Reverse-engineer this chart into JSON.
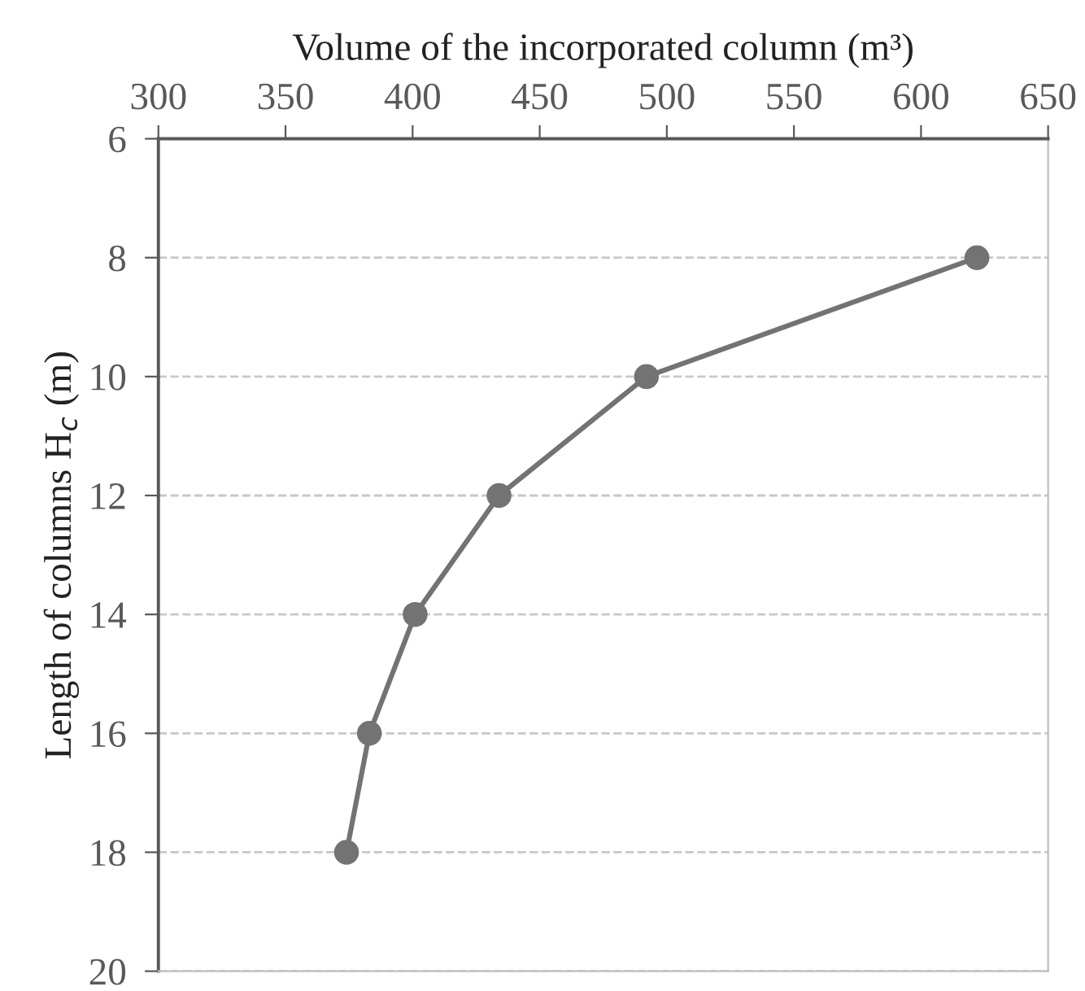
{
  "chart_data": {
    "type": "line",
    "xlabel": "Volume of the incorporated column (m³)",
    "ylabel": "Length of columns H$_{c}$ (m)",
    "series": [
      {
        "color": "#737373",
        "x": [
          622,
          492,
          434,
          401,
          383,
          374
        ],
        "values": [
          8,
          10,
          12,
          14,
          16,
          18
        ]
      }
    ],
    "xlim": [
      300,
      650
    ],
    "xticks": [
      300,
      350,
      400,
      450,
      500,
      550,
      600,
      650
    ],
    "ylim": [
      20,
      6
    ],
    "yticks": [
      6,
      8,
      10,
      12,
      14,
      16,
      18,
      20
    ],
    "grid": "y",
    "marker": "circle",
    "line_style": "solid"
  }
}
